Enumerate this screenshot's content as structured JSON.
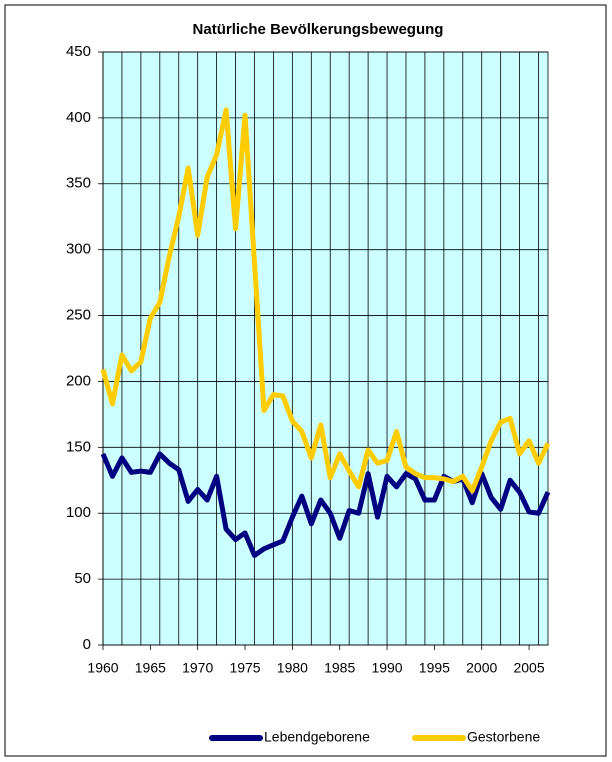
{
  "chart_data": {
    "type": "line",
    "title": "Natürliche Bevölkerungsbewegung",
    "x": [
      1960,
      1961,
      1962,
      1963,
      1964,
      1965,
      1966,
      1967,
      1968,
      1969,
      1970,
      1971,
      1972,
      1973,
      1974,
      1975,
      1976,
      1977,
      1978,
      1979,
      1980,
      1981,
      1982,
      1983,
      1984,
      1985,
      1986,
      1987,
      1988,
      1989,
      1990,
      1991,
      1992,
      1993,
      1994,
      1995,
      1996,
      1997,
      1998,
      1999,
      2000,
      2001,
      2002,
      2003,
      2004,
      2005,
      2006,
      2007
    ],
    "series": [
      {
        "name": "Lebendgeborene",
        "color": "#000080",
        "values": [
          145,
          128,
          142,
          131,
          132,
          131,
          145,
          138,
          133,
          109,
          118,
          110,
          128,
          88,
          80,
          85,
          68,
          73,
          76,
          79,
          97,
          113,
          92,
          110,
          100,
          81,
          102,
          100,
          130,
          97,
          128,
          120,
          130,
          126,
          110,
          110,
          128,
          124,
          126,
          108,
          130,
          112,
          103,
          125,
          116,
          101,
          100,
          116
        ]
      },
      {
        "name": "Gestorbene",
        "color": "#FFCC00",
        "values": [
          209,
          183,
          220,
          208,
          215,
          248,
          260,
          295,
          325,
          362,
          311,
          355,
          372,
          406,
          316,
          402,
          290,
          178,
          190,
          189,
          170,
          162,
          142,
          167,
          127,
          145,
          132,
          120,
          148,
          138,
          140,
          162,
          135,
          130,
          127,
          127,
          126,
          124,
          128,
          117,
          135,
          155,
          169,
          172,
          145,
          155,
          138,
          153
        ]
      }
    ],
    "xlim": [
      1960,
      2007
    ],
    "xticks": [
      1960,
      1965,
      1970,
      1975,
      1980,
      1985,
      1990,
      1995,
      2000,
      2005
    ],
    "ylim": [
      0,
      450
    ],
    "yticks": [
      0,
      50,
      100,
      150,
      200,
      250,
      300,
      350,
      400,
      450
    ],
    "grid": true,
    "legend": "bottom",
    "plot_background": "#CCFFFF"
  }
}
